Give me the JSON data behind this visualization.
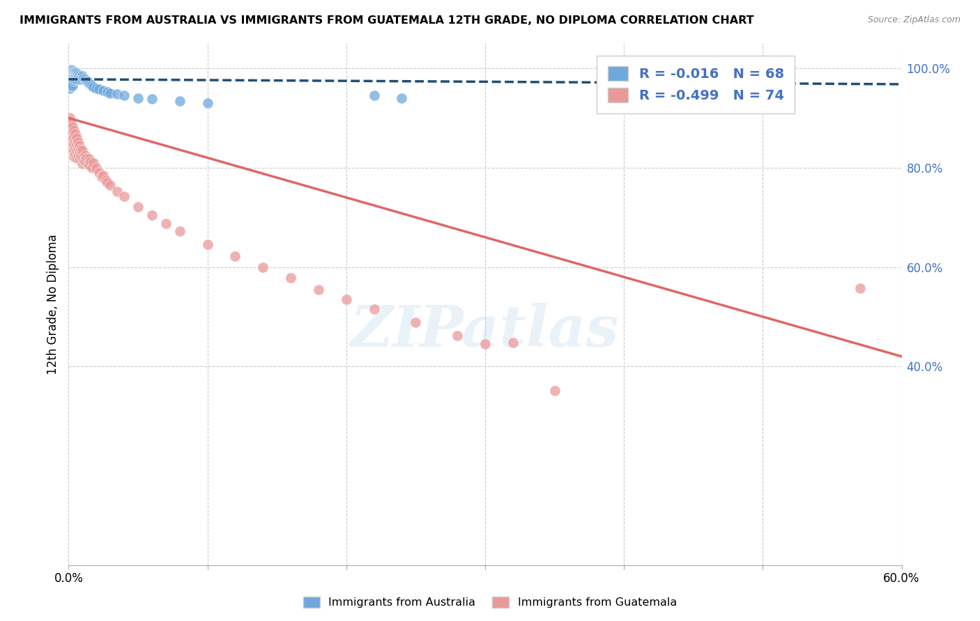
{
  "title": "IMMIGRANTS FROM AUSTRALIA VS IMMIGRANTS FROM GUATEMALA 12TH GRADE, NO DIPLOMA CORRELATION CHART",
  "source": "Source: ZipAtlas.com",
  "ylabel": "12th Grade, No Diploma",
  "xlim": [
    0,
    0.6
  ],
  "ylim": [
    0,
    1.05
  ],
  "x_ticks": [
    0.0,
    0.1,
    0.2,
    0.3,
    0.4,
    0.5,
    0.6
  ],
  "x_tick_labels": [
    "0.0%",
    "",
    "",
    "",
    "",
    "",
    "60.0%"
  ],
  "y_ticks_right": [
    0.4,
    0.6,
    0.8,
    1.0
  ],
  "y_tick_labels_right": [
    "40.0%",
    "60.0%",
    "80.0%",
    "100.0%"
  ],
  "australia_color": "#6fa8dc",
  "guatemala_color": "#ea9999",
  "australia_line_color": "#1f4e79",
  "guatemala_line_color": "#e06666",
  "R_australia": -0.016,
  "N_australia": 68,
  "R_guatemala": -0.499,
  "N_guatemala": 74,
  "watermark": "ZIPatlas",
  "background_color": "#ffffff",
  "grid_color": "#cccccc",
  "australia_x": [
    0.001,
    0.001,
    0.001,
    0.001,
    0.001,
    0.001,
    0.001,
    0.001,
    0.001,
    0.001,
    0.002,
    0.002,
    0.002,
    0.002,
    0.002,
    0.002,
    0.002,
    0.002,
    0.002,
    0.002,
    0.003,
    0.003,
    0.003,
    0.003,
    0.003,
    0.003,
    0.003,
    0.003,
    0.004,
    0.004,
    0.004,
    0.004,
    0.004,
    0.005,
    0.005,
    0.005,
    0.005,
    0.006,
    0.006,
    0.006,
    0.007,
    0.007,
    0.008,
    0.008,
    0.009,
    0.01,
    0.01,
    0.011,
    0.012,
    0.013,
    0.014,
    0.015,
    0.016,
    0.017,
    0.018,
    0.02,
    0.022,
    0.025,
    0.028,
    0.03,
    0.035,
    0.04,
    0.05,
    0.06,
    0.08,
    0.1,
    0.22,
    0.24
  ],
  "australia_y": [
    0.995,
    0.99,
    0.985,
    0.98,
    0.978,
    0.975,
    0.972,
    0.968,
    0.965,
    0.96,
    0.998,
    0.995,
    0.992,
    0.988,
    0.985,
    0.982,
    0.978,
    0.975,
    0.97,
    0.965,
    0.996,
    0.992,
    0.988,
    0.985,
    0.98,
    0.975,
    0.97,
    0.965,
    0.993,
    0.99,
    0.985,
    0.98,
    0.975,
    0.992,
    0.988,
    0.983,
    0.978,
    0.99,
    0.985,
    0.978,
    0.988,
    0.982,
    0.985,
    0.978,
    0.982,
    0.985,
    0.978,
    0.98,
    0.978,
    0.975,
    0.973,
    0.97,
    0.968,
    0.965,
    0.963,
    0.96,
    0.958,
    0.955,
    0.952,
    0.95,
    0.948,
    0.945,
    0.94,
    0.938,
    0.935,
    0.93,
    0.945,
    0.94
  ],
  "guatemala_x": [
    0.001,
    0.001,
    0.001,
    0.001,
    0.002,
    0.002,
    0.002,
    0.002,
    0.002,
    0.003,
    0.003,
    0.003,
    0.003,
    0.003,
    0.004,
    0.004,
    0.004,
    0.004,
    0.004,
    0.005,
    0.005,
    0.005,
    0.005,
    0.006,
    0.006,
    0.006,
    0.006,
    0.007,
    0.007,
    0.007,
    0.008,
    0.008,
    0.008,
    0.009,
    0.009,
    0.01,
    0.01,
    0.01,
    0.011,
    0.012,
    0.012,
    0.013,
    0.014,
    0.015,
    0.015,
    0.016,
    0.017,
    0.018,
    0.02,
    0.022,
    0.024,
    0.025,
    0.027,
    0.028,
    0.03,
    0.035,
    0.04,
    0.05,
    0.06,
    0.07,
    0.08,
    0.1,
    0.12,
    0.14,
    0.16,
    0.18,
    0.2,
    0.22,
    0.25,
    0.28,
    0.3,
    0.32,
    0.35,
    0.57
  ],
  "guatemala_y": [
    0.9,
    0.88,
    0.87,
    0.86,
    0.89,
    0.88,
    0.87,
    0.858,
    0.845,
    0.882,
    0.87,
    0.858,
    0.845,
    0.835,
    0.875,
    0.862,
    0.848,
    0.835,
    0.822,
    0.868,
    0.854,
    0.84,
    0.828,
    0.86,
    0.848,
    0.835,
    0.82,
    0.852,
    0.838,
    0.825,
    0.845,
    0.832,
    0.818,
    0.838,
    0.825,
    0.835,
    0.82,
    0.808,
    0.815,
    0.825,
    0.812,
    0.82,
    0.808,
    0.818,
    0.805,
    0.812,
    0.8,
    0.81,
    0.8,
    0.79,
    0.782,
    0.785,
    0.775,
    0.77,
    0.765,
    0.752,
    0.742,
    0.722,
    0.705,
    0.688,
    0.672,
    0.645,
    0.622,
    0.6,
    0.578,
    0.555,
    0.535,
    0.515,
    0.488,
    0.462,
    0.445,
    0.448,
    0.352,
    0.558
  ],
  "aus_line_x0": 0.0,
  "aus_line_x1": 0.6,
  "aus_line_y0": 0.978,
  "aus_line_y1": 0.968,
  "gua_line_x0": 0.0,
  "gua_line_x1": 0.6,
  "gua_line_y0": 0.9,
  "gua_line_y1": 0.42
}
